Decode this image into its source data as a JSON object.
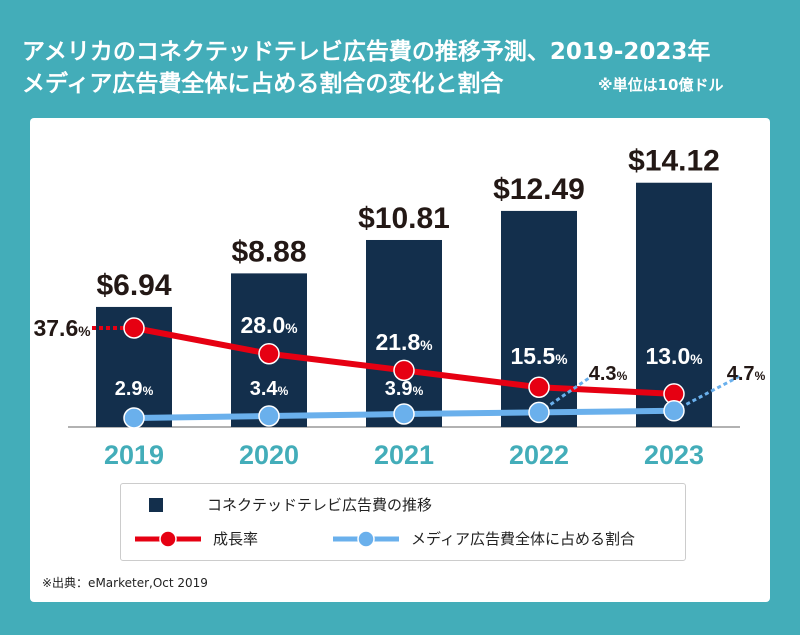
{
  "title": {
    "line1": "アメリカのコネクテッドテレビ広告費の推移予測、2019-2023年",
    "line2": "メディア広告費全体に占める割合の変化と割合",
    "unit": "※単位は10億ドル"
  },
  "chart_data": {
    "type": "bar",
    "categories": [
      "2019",
      "2020",
      "2021",
      "2022",
      "2023"
    ],
    "series": [
      {
        "name": "コネクテッドテレビ広告費の推移",
        "type": "bar",
        "values": [
          6.94,
          8.88,
          10.81,
          12.49,
          14.12
        ],
        "labels": [
          "$6.94",
          "$8.88",
          "$10.81",
          "$12.49",
          "$14.12"
        ],
        "color": "#132f4c"
      },
      {
        "name": "成長率",
        "type": "line",
        "values": [
          37.6,
          28.0,
          21.8,
          15.5,
          13.0
        ],
        "labels": [
          "37.6",
          "28.0",
          "21.8",
          "15.5",
          "13.0"
        ],
        "unit": "%",
        "color": "#e60012"
      },
      {
        "name": "メディア広告費全体に占める割合",
        "type": "line",
        "values": [
          2.9,
          3.4,
          3.9,
          4.3,
          4.7
        ],
        "labels": [
          "2.9",
          "3.4",
          "3.9",
          "4.3",
          "4.7"
        ],
        "unit": "%",
        "color": "#6ab0ec"
      }
    ],
    "category_color": "#43adb9"
  },
  "source": "※出典：eMarketer,Oct 2019"
}
